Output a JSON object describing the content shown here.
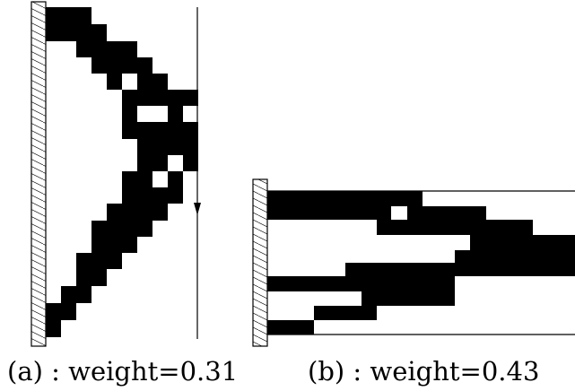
{
  "panels": [
    {
      "id": "a",
      "caption": "(a) : weight=0.31"
    },
    {
      "id": "b",
      "caption": "(b) : weight=0.43"
    }
  ],
  "colors": {
    "material": "#000000",
    "background": "#ffffff",
    "support_hatch": "#000000"
  }
}
